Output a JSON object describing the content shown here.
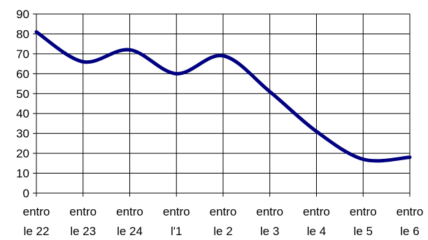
{
  "chart_data": {
    "type": "line",
    "title": "",
    "xlabel": "",
    "ylabel": "",
    "categories": [
      [
        "entro",
        "le 22"
      ],
      [
        "entro",
        "le 23"
      ],
      [
        "entro",
        "le 24"
      ],
      [
        "entro",
        "l'1"
      ],
      [
        "entro",
        "le 2"
      ],
      [
        "entro",
        "le 3"
      ],
      [
        "entro",
        "le 4"
      ],
      [
        "entro",
        "le 5"
      ],
      [
        "entro",
        "le 6"
      ]
    ],
    "series": [
      {
        "values": [
          81,
          66,
          72,
          60,
          69,
          51,
          31,
          17,
          18
        ],
        "color": "#000080"
      }
    ],
    "ylim": [
      0,
      90
    ],
    "yticks": [
      0,
      10,
      20,
      30,
      40,
      50,
      60,
      70,
      80,
      90
    ],
    "grid": true,
    "legend": "none",
    "colors": {
      "line": "#000080",
      "grid": "#000000",
      "background": "#ffffff"
    }
  }
}
